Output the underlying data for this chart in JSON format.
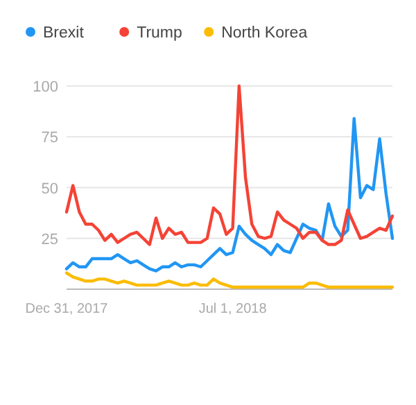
{
  "chart_data": {
    "type": "line",
    "x": [
      "2017-12-31",
      "2018-01-07",
      "2018-01-14",
      "2018-01-21",
      "2018-01-28",
      "2018-02-04",
      "2018-02-11",
      "2018-02-18",
      "2018-02-25",
      "2018-03-04",
      "2018-03-11",
      "2018-03-18",
      "2018-03-25",
      "2018-04-01",
      "2018-04-08",
      "2018-04-15",
      "2018-04-22",
      "2018-04-29",
      "2018-05-06",
      "2018-05-13",
      "2018-05-20",
      "2018-05-27",
      "2018-06-03",
      "2018-06-10",
      "2018-06-17",
      "2018-06-24",
      "2018-07-01",
      "2018-07-08",
      "2018-07-15",
      "2018-07-22",
      "2018-07-29",
      "2018-08-05",
      "2018-08-12",
      "2018-08-19",
      "2018-08-26",
      "2018-09-02",
      "2018-09-09",
      "2018-09-16",
      "2018-09-23",
      "2018-09-30",
      "2018-10-07",
      "2018-10-14",
      "2018-10-21",
      "2018-10-28",
      "2018-11-04",
      "2018-11-11",
      "2018-11-18",
      "2018-11-25",
      "2018-12-02",
      "2018-12-09",
      "2018-12-16",
      "2018-12-23"
    ],
    "series": [
      {
        "name": "Brexit",
        "color": "#2196f3",
        "values": [
          10,
          13,
          11,
          11,
          15,
          15,
          15,
          15,
          17,
          15,
          13,
          14,
          12,
          10,
          9,
          11,
          11,
          13,
          11,
          12,
          12,
          11,
          14,
          17,
          20,
          17,
          18,
          31,
          27,
          24,
          22,
          20,
          17,
          22,
          19,
          18,
          25,
          32,
          30,
          29,
          24,
          42,
          31,
          26,
          29,
          84,
          45,
          51,
          49,
          74,
          47,
          25
        ]
      },
      {
        "name": "Trump",
        "color": "#f44336",
        "values": [
          38,
          51,
          38,
          32,
          32,
          29,
          24,
          27,
          23,
          25,
          27,
          28,
          25,
          22,
          35,
          25,
          30,
          27,
          28,
          23,
          23,
          23,
          25,
          40,
          37,
          27,
          30,
          100,
          55,
          32,
          26,
          25,
          26,
          38,
          34,
          32,
          30,
          25,
          28,
          28,
          24,
          22,
          22,
          24,
          39,
          32,
          25,
          26,
          28,
          30,
          29,
          36
        ]
      },
      {
        "name": "North Korea",
        "color": "#fbbc04",
        "values": [
          8,
          6,
          5,
          4,
          4,
          5,
          5,
          4,
          3,
          4,
          3,
          2,
          2,
          2,
          2,
          3,
          4,
          3,
          2,
          2,
          3,
          2,
          2,
          5,
          3,
          2,
          1,
          1,
          1,
          1,
          1,
          1,
          1,
          1,
          1,
          1,
          1,
          1,
          3,
          3,
          2,
          1,
          1,
          1,
          1,
          1,
          1,
          1,
          1,
          1,
          1,
          1
        ]
      }
    ],
    "xlim": [
      "2017-12-31",
      "2018-12-23"
    ],
    "xticks": [
      {
        "value": "2017-12-31",
        "label": "Dec 31, 2017"
      },
      {
        "value": "2018-07-01",
        "label": "Jul 1, 2018"
      }
    ],
    "ylim": [
      0,
      100
    ],
    "yticks": [
      {
        "value": 0,
        "label": null
      },
      25,
      50,
      75,
      100
    ],
    "grid": "y",
    "legend": "top left",
    "marker": "none",
    "line_style": "solid"
  }
}
